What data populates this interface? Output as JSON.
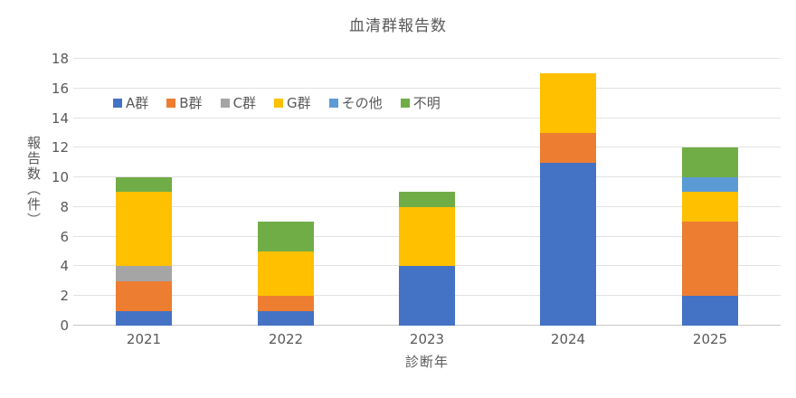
{
  "chart_data": {
    "type": "bar",
    "stacked": true,
    "title": "血清群報告数",
    "xlabel": "診断年",
    "ylabel": "報告数（件）",
    "categories": [
      "2021",
      "2022",
      "2023",
      "2024",
      "2025"
    ],
    "series": [
      {
        "name": "A群",
        "color": "#4472C4",
        "values": [
          1,
          1,
          4,
          11,
          2
        ]
      },
      {
        "name": "B群",
        "color": "#ED7D31",
        "values": [
          2,
          1,
          0,
          2,
          5
        ]
      },
      {
        "name": "C群",
        "color": "#A5A5A5",
        "values": [
          1,
          0,
          0,
          0,
          0
        ]
      },
      {
        "name": "G群",
        "color": "#FFC000",
        "values": [
          5,
          3,
          4,
          4,
          2
        ]
      },
      {
        "name": "その他",
        "color": "#5B9BD5",
        "values": [
          0,
          0,
          0,
          0,
          1
        ]
      },
      {
        "name": "不明",
        "color": "#70AD47",
        "values": [
          1,
          2,
          1,
          0,
          2
        ]
      }
    ],
    "totals": [
      10,
      7,
      9,
      17,
      12
    ],
    "ylim": [
      0,
      18
    ],
    "yticks": [
      0,
      2,
      4,
      6,
      8,
      10,
      12,
      14,
      16,
      18
    ],
    "grid": "horizontal",
    "legend_position": "inside-top-left"
  },
  "colors": {
    "text": "#595959",
    "gridline": "#E2E2E2",
    "zero_line": "#C6C6C6",
    "background": "#FFFFFF"
  }
}
